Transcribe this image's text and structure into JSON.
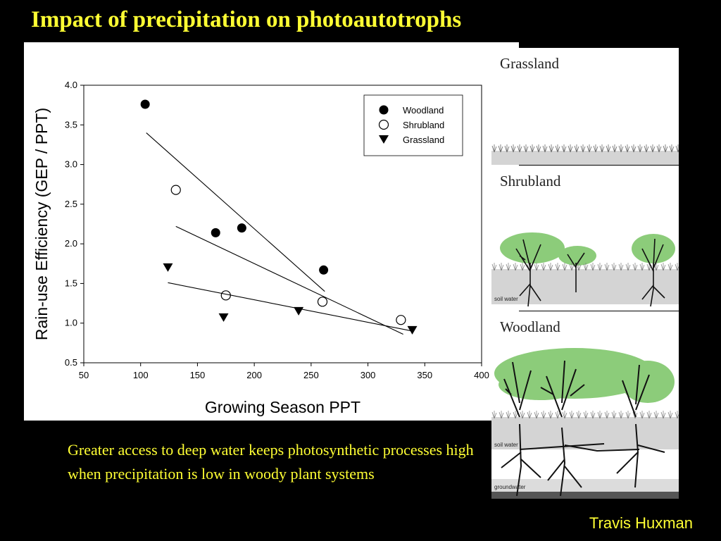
{
  "slide": {
    "title": "Impact of precipitation on photoautotrophs",
    "caption": "Greater access to deep water keeps photosynthetic processes high when precipitation is low in woody plant systems",
    "credit": "Travis Huxman"
  },
  "illustrations": {
    "grassland": {
      "label": "Grassland"
    },
    "shrubland": {
      "label": "Shrubland",
      "soil_label": "soil water"
    },
    "woodland": {
      "label": "Woodland",
      "soil_label": "soil water",
      "groundwater_label": "groundwater"
    },
    "canopy_color": "#8ccc7a"
  },
  "chart_data": {
    "type": "scatter",
    "title": "",
    "xlabel": "Growing Season PPT",
    "ylabel": "Rain-use Efficiency (GEP / PPT)",
    "xlim": [
      50,
      400
    ],
    "ylim": [
      0.5,
      4.0
    ],
    "xticks": [
      "50",
      "100",
      "150",
      "200",
      "250",
      "300",
      "350",
      "400"
    ],
    "yticks": [
      "0.5",
      "1.0",
      "1.5",
      "2.0",
      "2.5",
      "3.0",
      "3.5",
      "4.0"
    ],
    "legend_position": "top-right",
    "grid": false,
    "series": [
      {
        "name": "Woodland",
        "marker": "filled-circle",
        "points": [
          [
            104,
            3.76
          ],
          [
            166,
            2.14
          ],
          [
            189,
            2.2
          ],
          [
            261,
            1.67
          ]
        ],
        "fit_line": [
          [
            105,
            3.4
          ],
          [
            262,
            1.4
          ]
        ]
      },
      {
        "name": "Shrubland",
        "marker": "open-circle",
        "points": [
          [
            131,
            2.68
          ],
          [
            175,
            1.35
          ],
          [
            260,
            1.27
          ],
          [
            329,
            1.04
          ]
        ],
        "fit_line": [
          [
            131,
            2.22
          ],
          [
            331,
            0.86
          ]
        ]
      },
      {
        "name": "Grassland",
        "marker": "filled-triangle-down",
        "points": [
          [
            124,
            1.7
          ],
          [
            173,
            1.07
          ],
          [
            239,
            1.15
          ],
          [
            339,
            0.91
          ]
        ],
        "fit_line": [
          [
            124,
            1.51
          ],
          [
            339,
            0.9
          ]
        ]
      }
    ]
  }
}
